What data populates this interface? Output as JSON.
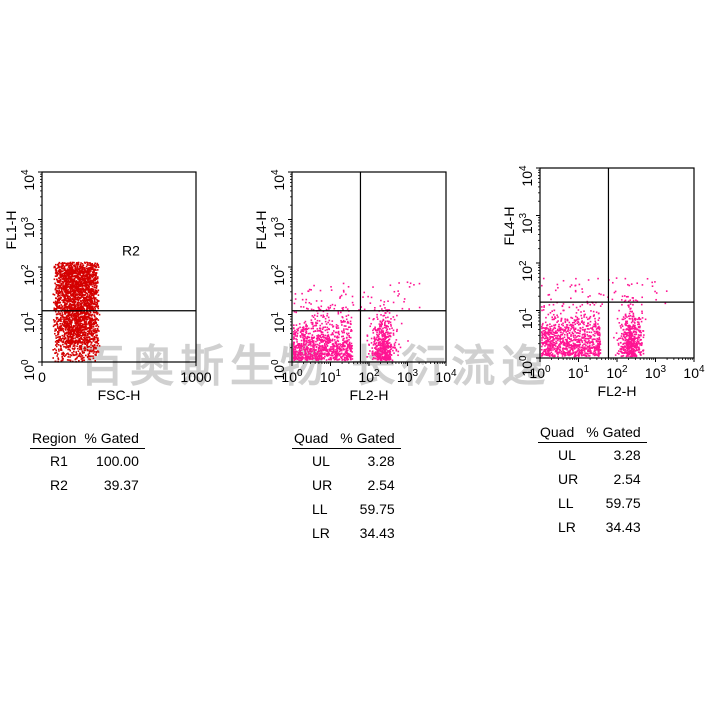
{
  "chart_data": [
    {
      "type": "scatter",
      "title": "",
      "xlabel": "FSC-H",
      "ylabel": "FL1-H",
      "xscale": "linear",
      "yscale": "log",
      "xlim": [
        0,
        1000
      ],
      "ylim": [
        1,
        10000
      ],
      "x_ticks": [
        "0",
        "1000"
      ],
      "y_ticks": [
        "10^0",
        "10^1",
        "10^2",
        "10^3",
        "10^4"
      ],
      "point_color": "#d40000",
      "gate": {
        "label": "R2",
        "y_threshold": 12
      },
      "population": {
        "x_range": [
          80,
          360
        ],
        "y_range": [
          1,
          130
        ]
      },
      "table": {
        "headers": [
          "Region",
          "% Gated"
        ],
        "rows": [
          [
            "R1",
            "100.00"
          ],
          [
            "R2",
            "39.37"
          ]
        ]
      }
    },
    {
      "type": "scatter",
      "title": "",
      "xlabel": "FL2-H",
      "ylabel": "FL4-H",
      "xscale": "log",
      "yscale": "log",
      "xlim": [
        1,
        10000
      ],
      "ylim": [
        1,
        10000
      ],
      "x_ticks": [
        "10^0",
        "10^1",
        "10^2",
        "10^3",
        "10^4"
      ],
      "y_ticks": [
        "10^0",
        "10^1",
        "10^2",
        "10^3",
        "10^4"
      ],
      "point_color": "#ff1493",
      "quadrant": {
        "x": 60,
        "y": 12
      },
      "table": {
        "headers": [
          "Quad",
          "% Gated"
        ],
        "rows": [
          [
            "UL",
            "3.28"
          ],
          [
            "UR",
            "2.54"
          ],
          [
            "LL",
            "59.75"
          ],
          [
            "LR",
            "34.43"
          ]
        ]
      }
    },
    {
      "type": "scatter",
      "title": "",
      "xlabel": "FL2-H",
      "ylabel": "FL4-H",
      "xscale": "log",
      "yscale": "log",
      "xlim": [
        1,
        10000
      ],
      "ylim": [
        1,
        10000
      ],
      "x_ticks": [
        "10^0",
        "10^1",
        "10^2",
        "10^3",
        "10^4"
      ],
      "y_ticks": [
        "10^0",
        "10^1",
        "10^2",
        "10^3",
        "10^4"
      ],
      "point_color": "#ff1493",
      "quadrant": {
        "x": 60,
        "y": 15
      },
      "table": {
        "headers": [
          "Quad",
          "% Gated"
        ],
        "rows": [
          [
            "UL",
            "3.28"
          ],
          [
            "UR",
            "2.54"
          ],
          [
            "LL",
            "59.75"
          ],
          [
            "LR",
            "34.43"
          ]
        ]
      }
    }
  ],
  "watermark": "百奥斯生物 长衍流逸"
}
